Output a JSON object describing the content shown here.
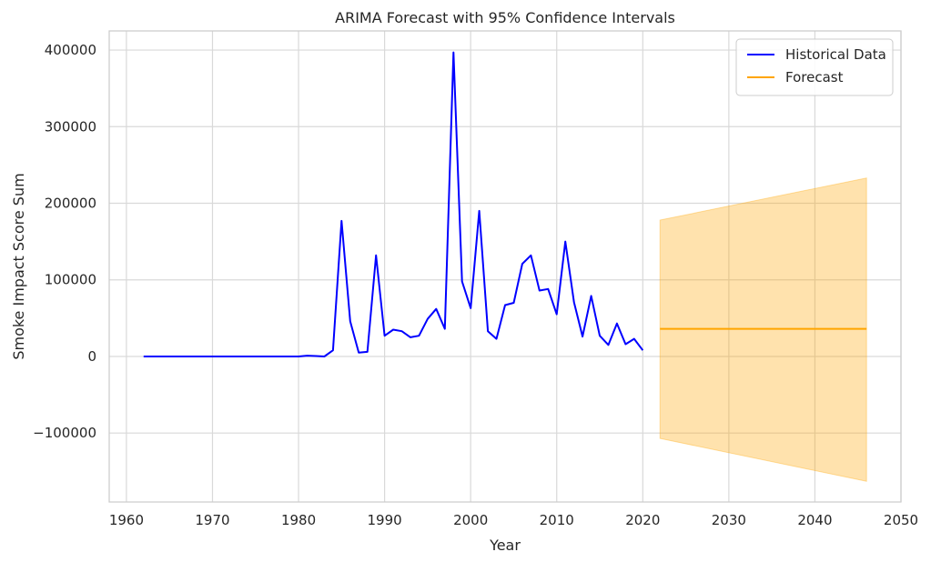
{
  "chart_data": {
    "type": "line",
    "title": "ARIMA Forecast with 95% Confidence Intervals",
    "xlabel": "Year",
    "ylabel": "Smoke Impact Score Sum",
    "xlim": [
      1958,
      2050
    ],
    "ylim": [
      -190000,
      425000
    ],
    "x_ticks": [
      1960,
      1970,
      1980,
      1990,
      2000,
      2010,
      2020,
      2030,
      2040,
      2050
    ],
    "y_ticks": [
      -100000,
      0,
      100000,
      200000,
      300000,
      400000
    ],
    "y_tick_labels": [
      "−100000",
      "0",
      "100000",
      "200000",
      "300000",
      "400000"
    ],
    "grid": true,
    "legend_position": "top-right",
    "series": [
      {
        "name": "Historical Data",
        "color": "#0000ff",
        "x": [
          1962,
          1963,
          1964,
          1965,
          1966,
          1967,
          1968,
          1969,
          1970,
          1971,
          1972,
          1973,
          1974,
          1975,
          1976,
          1977,
          1978,
          1979,
          1980,
          1981,
          1982,
          1983,
          1984,
          1985,
          1986,
          1987,
          1988,
          1989,
          1990,
          1991,
          1992,
          1993,
          1994,
          1995,
          1996,
          1997,
          1998,
          1999,
          2000,
          2001,
          2002,
          2003,
          2004,
          2005,
          2006,
          2007,
          2008,
          2009,
          2010,
          2011,
          2012,
          2013,
          2014,
          2015,
          2016,
          2017,
          2018,
          2019,
          2020
        ],
        "y": [
          0,
          0,
          0,
          0,
          0,
          0,
          0,
          0,
          0,
          0,
          0,
          0,
          0,
          0,
          0,
          0,
          0,
          0,
          0,
          1000,
          500,
          0,
          8000,
          177000,
          46000,
          5000,
          6000,
          132000,
          27000,
          35000,
          33000,
          25000,
          27000,
          49000,
          62000,
          36000,
          397000,
          98000,
          63000,
          190000,
          33000,
          23000,
          67000,
          70000,
          121000,
          132000,
          86000,
          88000,
          55000,
          150000,
          71000,
          26000,
          79000,
          27000,
          15000,
          43000,
          16000,
          23000,
          8000
        ]
      },
      {
        "name": "Forecast",
        "color": "#ffa500",
        "x": [
          2022,
          2046
        ],
        "y": [
          36000,
          36000
        ]
      }
    ],
    "confidence_band": {
      "color": "#ffa500",
      "x": [
        2022,
        2046
      ],
      "lower": [
        -107000,
        -163000
      ],
      "upper": [
        178000,
        233000
      ]
    }
  }
}
